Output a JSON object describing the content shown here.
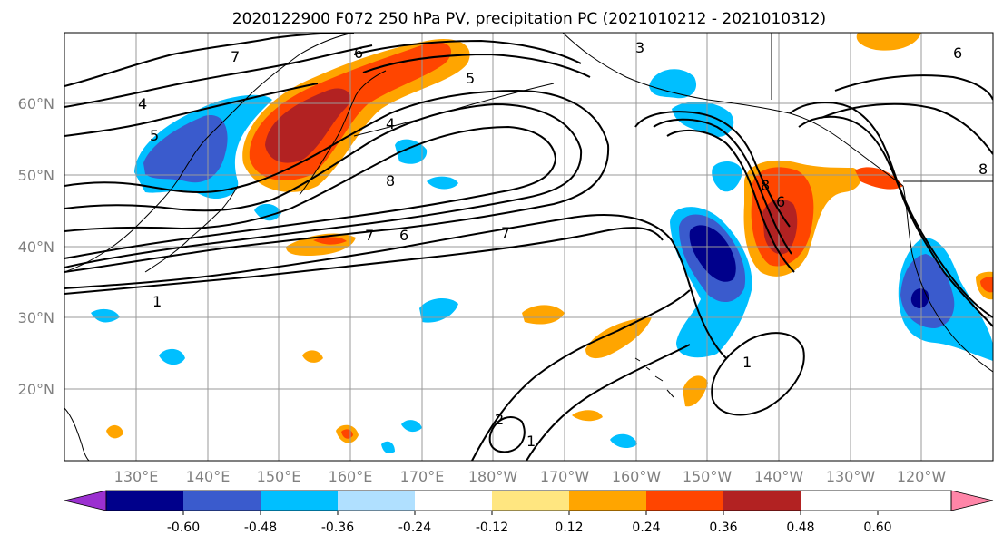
{
  "title": "2020122900 F072 250 hPa PV, precipitation PC (2021010212 - 2021010312)",
  "map": {
    "lat_ticks": [
      "60°N",
      "50°N",
      "40°N",
      "30°N",
      "20°N"
    ],
    "lon_ticks": [
      "130°E",
      "140°E",
      "150°E",
      "160°E",
      "170°E",
      "180°W",
      "170°W",
      "160°W",
      "150°W",
      "140°W",
      "130°W",
      "120°W"
    ],
    "pv_contour_labels": [
      "7",
      "6",
      "4",
      "5",
      "5",
      "4",
      "8",
      "7",
      "6",
      "7",
      "1",
      "1",
      "2",
      "1",
      "8",
      "6",
      "8",
      "6",
      "3"
    ]
  },
  "colorbar": {
    "ticks": [
      "-0.60",
      "-0.48",
      "-0.36",
      "-0.24",
      "-0.12",
      "0.12",
      "0.24",
      "0.36",
      "0.48",
      "0.60"
    ],
    "colors": [
      "#9b30d0",
      "#00008b",
      "#3a5bcd",
      "#00bfff",
      "#b0e0ff",
      "#ffffff",
      "#ffe680",
      "#ffa500",
      "#ff4500",
      "#b22222",
      "#ff85a8"
    ]
  },
  "colors": {
    "grid": "#999999",
    "contour": "#000000",
    "coast": "#000000"
  }
}
